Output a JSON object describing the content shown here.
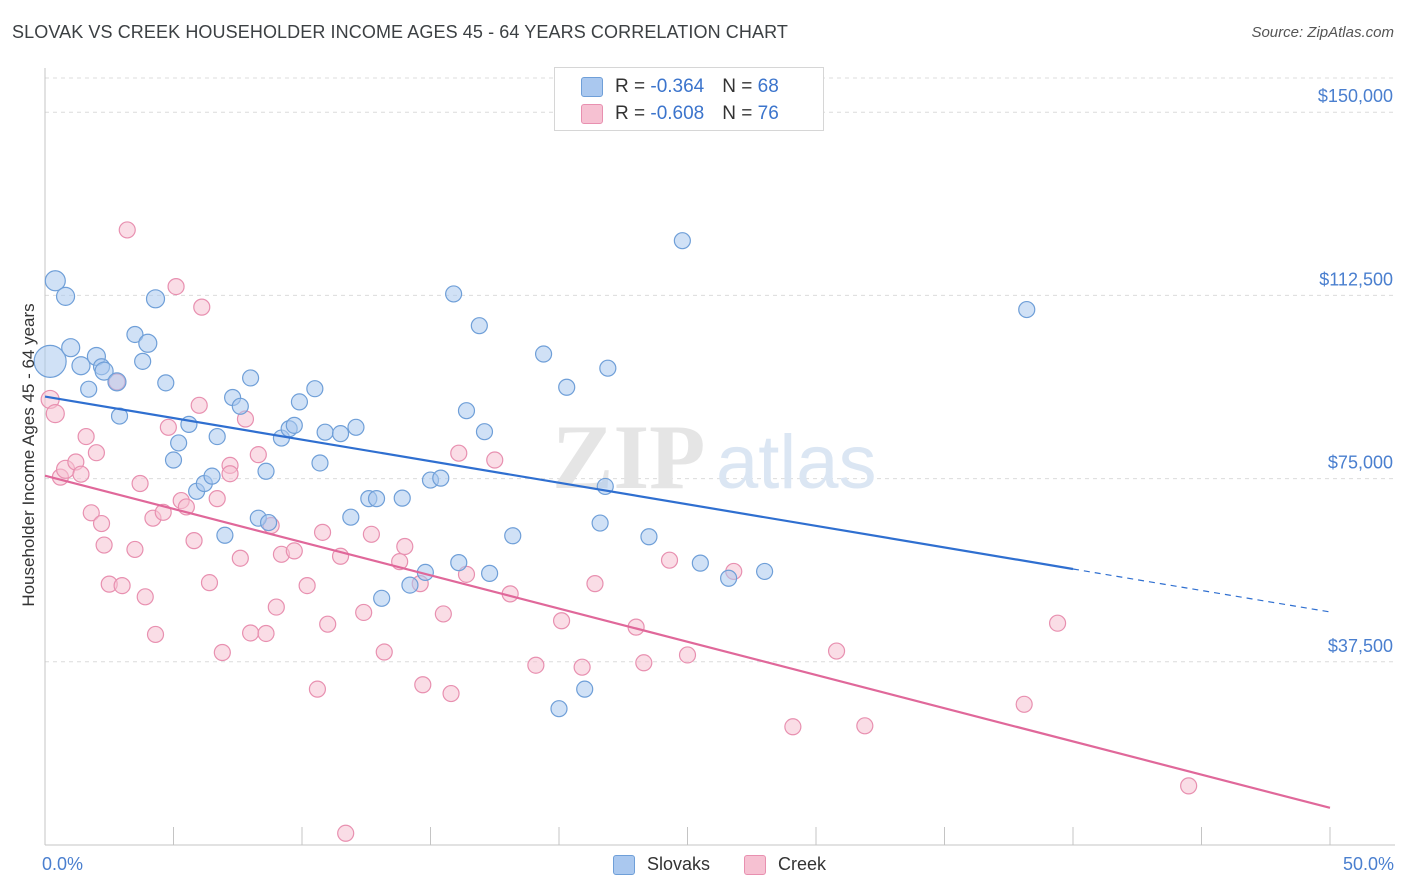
{
  "title": "SLOVAK VS CREEK HOUSEHOLDER INCOME AGES 45 - 64 YEARS CORRELATION CHART",
  "source": "Source: ZipAtlas.com",
  "watermark": {
    "zip": "ZIP",
    "atlas": "atlas"
  },
  "colors": {
    "slovaks_fill": "#aac8ef",
    "slovaks_stroke": "#6f9fd8",
    "slovaks_line": "#2f6fd0",
    "creek_fill": "#f6c1d2",
    "creek_stroke": "#e890b0",
    "creek_line": "#e0689a",
    "axis_text": "#4a7fcf"
  },
  "legend": {
    "rows": [
      {
        "r_label": "R = ",
        "r_value": "-0.364",
        "n_label": "N = ",
        "n_value": "68"
      },
      {
        "r_label": "R = ",
        "r_value": "-0.608",
        "n_label": "N = ",
        "n_value": "76"
      }
    ]
  },
  "bottom_legend": [
    "Slovaks",
    "Creek"
  ],
  "chart_data": {
    "type": "scatter",
    "xlabel": "",
    "ylabel": "Householder Income Ages 45 - 64 years",
    "xlim": [
      0,
      50
    ],
    "ylim": [
      0,
      157000
    ],
    "x_tick_labels": [
      "0.0%",
      "50.0%"
    ],
    "y_ticks": [
      37500,
      75000,
      112500,
      150000
    ],
    "y_tick_labels": [
      "$37,500",
      "$75,000",
      "$112,500",
      "$150,000"
    ],
    "grid": true,
    "series": [
      {
        "name": "Slovaks",
        "trend": {
          "x": [
            0,
            40
          ],
          "y": [
            91800,
            56500
          ],
          "dashed_to": {
            "x": 50,
            "y": 47700
          }
        },
        "points": [
          [
            0.2,
            99000,
            16
          ],
          [
            0.4,
            115500,
            10
          ],
          [
            0.8,
            112300,
            9
          ],
          [
            1.0,
            101800,
            9
          ],
          [
            1.4,
            98100,
            9
          ],
          [
            1.7,
            93300,
            8
          ],
          [
            2.0,
            100000,
            9
          ],
          [
            2.2,
            97900,
            8
          ],
          [
            2.3,
            97000,
            9
          ],
          [
            2.8,
            94800,
            9
          ],
          [
            2.9,
            87800,
            8
          ],
          [
            3.5,
            104500,
            8
          ],
          [
            3.8,
            99000,
            8
          ],
          [
            4.0,
            102700,
            9
          ],
          [
            4.3,
            111800,
            9
          ],
          [
            4.7,
            94600,
            8
          ],
          [
            5.0,
            78800,
            8
          ],
          [
            5.2,
            82300,
            8
          ],
          [
            5.6,
            86100,
            8
          ],
          [
            5.9,
            72400,
            8
          ],
          [
            6.2,
            74000,
            8
          ],
          [
            6.5,
            75500,
            8
          ],
          [
            6.7,
            83600,
            8
          ],
          [
            7.0,
            63400,
            8
          ],
          [
            7.3,
            91600,
            8
          ],
          [
            7.6,
            89800,
            8
          ],
          [
            8.0,
            95600,
            8
          ],
          [
            8.3,
            66900,
            8
          ],
          [
            8.6,
            76500,
            8
          ],
          [
            8.7,
            66000,
            8
          ],
          [
            9.2,
            83300,
            8
          ],
          [
            9.5,
            85200,
            8
          ],
          [
            9.7,
            85900,
            8
          ],
          [
            9.9,
            90700,
            8
          ],
          [
            10.5,
            93400,
            8
          ],
          [
            10.7,
            78200,
            8
          ],
          [
            10.9,
            84500,
            8
          ],
          [
            11.5,
            84200,
            8
          ],
          [
            11.9,
            67100,
            8
          ],
          [
            12.1,
            85500,
            8
          ],
          [
            12.6,
            70900,
            8
          ],
          [
            12.9,
            70900,
            8
          ],
          [
            13.1,
            50500,
            8
          ],
          [
            13.9,
            71000,
            8
          ],
          [
            14.2,
            53200,
            8
          ],
          [
            14.8,
            55800,
            8
          ],
          [
            15.0,
            74700,
            8
          ],
          [
            15.4,
            75100,
            8
          ],
          [
            15.9,
            112800,
            8
          ],
          [
            16.1,
            57800,
            8
          ],
          [
            16.4,
            88900,
            8
          ],
          [
            16.9,
            106300,
            8
          ],
          [
            17.1,
            84600,
            8
          ],
          [
            17.3,
            55600,
            8
          ],
          [
            18.2,
            63300,
            8
          ],
          [
            19.4,
            100500,
            8
          ],
          [
            20.0,
            27900,
            8
          ],
          [
            20.3,
            93700,
            8
          ],
          [
            21.0,
            31900,
            8
          ],
          [
            21.6,
            65900,
            8
          ],
          [
            21.8,
            73400,
            8
          ],
          [
            21.9,
            97600,
            8
          ],
          [
            23.5,
            63100,
            8
          ],
          [
            24.8,
            123700,
            8
          ],
          [
            25.5,
            57700,
            8
          ],
          [
            26.6,
            54600,
            8
          ],
          [
            28.0,
            56000,
            8
          ],
          [
            38.2,
            109600,
            8
          ]
        ]
      },
      {
        "name": "Creek",
        "trend": {
          "x": [
            0,
            50
          ],
          "y": [
            75600,
            7600
          ]
        },
        "points": [
          [
            0.2,
            91200,
            9
          ],
          [
            0.4,
            88300,
            9
          ],
          [
            0.6,
            75300,
            8
          ],
          [
            0.8,
            76900,
            9
          ],
          [
            1.2,
            78400,
            8
          ],
          [
            1.4,
            75900,
            8
          ],
          [
            1.6,
            83600,
            8
          ],
          [
            1.8,
            68000,
            8
          ],
          [
            2.0,
            80300,
            8
          ],
          [
            2.2,
            65800,
            8
          ],
          [
            2.3,
            61400,
            8
          ],
          [
            2.5,
            53400,
            8
          ],
          [
            2.8,
            94800,
            8
          ],
          [
            3.0,
            53100,
            8
          ],
          [
            3.2,
            125900,
            8
          ],
          [
            3.5,
            60500,
            8
          ],
          [
            3.7,
            74000,
            8
          ],
          [
            3.9,
            50800,
            8
          ],
          [
            4.2,
            66900,
            8
          ],
          [
            4.3,
            43100,
            8
          ],
          [
            4.6,
            68100,
            8
          ],
          [
            4.8,
            85500,
            8
          ],
          [
            5.1,
            114300,
            8
          ],
          [
            5.3,
            70500,
            8
          ],
          [
            5.5,
            69200,
            8
          ],
          [
            5.8,
            62300,
            8
          ],
          [
            6.0,
            90000,
            8
          ],
          [
            6.1,
            110100,
            8
          ],
          [
            6.4,
            53700,
            8
          ],
          [
            6.7,
            70900,
            8
          ],
          [
            6.9,
            39400,
            8
          ],
          [
            7.2,
            77700,
            8
          ],
          [
            7.2,
            76000,
            8
          ],
          [
            7.6,
            58700,
            8
          ],
          [
            7.8,
            87200,
            8
          ],
          [
            8.0,
            43400,
            8
          ],
          [
            8.3,
            79900,
            8
          ],
          [
            8.6,
            43300,
            8
          ],
          [
            8.8,
            65400,
            8
          ],
          [
            9.0,
            48700,
            8
          ],
          [
            9.2,
            59500,
            8
          ],
          [
            9.7,
            60200,
            8
          ],
          [
            10.2,
            53100,
            8
          ],
          [
            10.6,
            31900,
            8
          ],
          [
            10.8,
            64000,
            8
          ],
          [
            11.0,
            45200,
            8
          ],
          [
            11.5,
            59100,
            8
          ],
          [
            11.7,
            2400,
            8
          ],
          [
            12.4,
            47600,
            8
          ],
          [
            12.7,
            63600,
            8
          ],
          [
            13.2,
            39500,
            8
          ],
          [
            13.8,
            58000,
            8
          ],
          [
            14.0,
            61100,
            8
          ],
          [
            14.6,
            53500,
            8
          ],
          [
            14.7,
            32800,
            8
          ],
          [
            15.5,
            47300,
            8
          ],
          [
            15.8,
            31000,
            8
          ],
          [
            16.1,
            80200,
            8
          ],
          [
            16.4,
            55400,
            8
          ],
          [
            17.5,
            78800,
            8
          ],
          [
            18.1,
            51400,
            8
          ],
          [
            19.1,
            36800,
            8
          ],
          [
            20.1,
            45900,
            8
          ],
          [
            20.9,
            36400,
            8
          ],
          [
            21.4,
            53500,
            8
          ],
          [
            23.0,
            44600,
            8
          ],
          [
            23.3,
            37300,
            8
          ],
          [
            24.3,
            58300,
            8
          ],
          [
            25.0,
            38900,
            8
          ],
          [
            26.8,
            56000,
            8
          ],
          [
            29.1,
            24200,
            8
          ],
          [
            30.8,
            39700,
            8
          ],
          [
            31.9,
            24400,
            8
          ],
          [
            38.1,
            28800,
            8
          ],
          [
            39.4,
            45400,
            8
          ],
          [
            44.5,
            12100,
            8
          ]
        ]
      }
    ]
  }
}
